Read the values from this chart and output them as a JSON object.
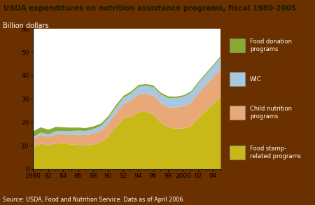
{
  "title": "USDA expenditures on nutrition assistance programs, fiscal 1980-2005",
  "title_bg": "#c8a800",
  "title_text_color": "#1a1a00",
  "ylabel": "Billion dollars",
  "source": "Source: USDA, Food and Nutrition Service. Data as of April 2006.",
  "background_color": "#6b3000",
  "plot_bg": "#ffffff",
  "years": [
    1980,
    1981,
    1982,
    1983,
    1984,
    1985,
    1986,
    1987,
    1988,
    1989,
    1990,
    1991,
    1992,
    1993,
    1994,
    1995,
    1996,
    1997,
    1998,
    1999,
    2000,
    2001,
    2002,
    2003,
    2004,
    2005
  ],
  "food_stamps": [
    9.5,
    11.0,
    10.2,
    11.2,
    11.0,
    10.7,
    10.5,
    10.2,
    10.7,
    11.5,
    14.2,
    18.1,
    21.5,
    22.5,
    24.5,
    24.6,
    23.5,
    20.0,
    18.0,
    17.5,
    17.5,
    18.5,
    22.0,
    25.0,
    28.0,
    31.0
  ],
  "child_nutrition": [
    3.5,
    3.8,
    3.7,
    3.9,
    4.0,
    4.2,
    4.4,
    4.5,
    4.7,
    5.0,
    5.5,
    6.0,
    6.5,
    7.0,
    7.5,
    7.8,
    8.0,
    8.3,
    8.6,
    9.0,
    9.5,
    10.0,
    10.5,
    11.0,
    11.5,
    12.0
  ],
  "wic": [
    0.9,
    1.0,
    1.1,
    1.3,
    1.5,
    1.6,
    1.7,
    1.8,
    1.9,
    2.1,
    2.2,
    2.5,
    2.6,
    3.0,
    3.3,
    3.5,
    3.7,
    3.8,
    3.9,
    4.0,
    4.1,
    4.2,
    4.3,
    4.5,
    4.7,
    4.9
  ],
  "food_donation": [
    2.5,
    2.2,
    2.0,
    1.8,
    1.5,
    1.4,
    1.3,
    1.2,
    1.1,
    1.0,
    0.9,
    0.9,
    0.8,
    0.8,
    0.7,
    0.7,
    0.7,
    0.7,
    0.7,
    0.6,
    0.6,
    0.6,
    0.6,
    0.6,
    0.6,
    0.6
  ],
  "color_food_stamps": "#c8b818",
  "color_child_nutrition": "#e8a878",
  "color_wic": "#a8c8e0",
  "color_food_donation": "#88aa30",
  "ylim": [
    0,
    60
  ],
  "yticks": [
    0,
    10,
    20,
    30,
    40,
    50,
    60
  ],
  "xtick_labels": [
    "1980",
    "82",
    "84",
    "86",
    "88",
    "90",
    "92",
    "94",
    "96",
    "98",
    "2000",
    "02",
    "04"
  ],
  "xtick_positions": [
    1980,
    1982,
    1984,
    1986,
    1988,
    1990,
    1992,
    1994,
    1996,
    1998,
    2000,
    2002,
    2004
  ]
}
